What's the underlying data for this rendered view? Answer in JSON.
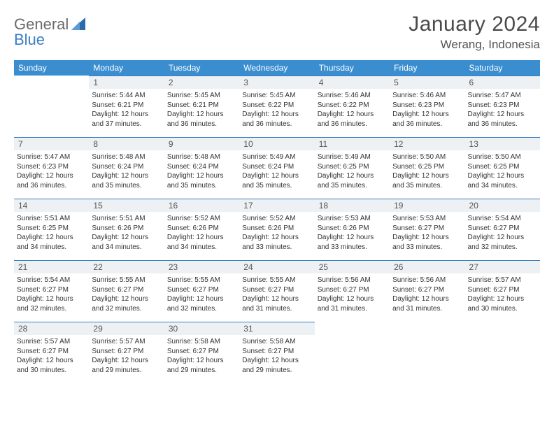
{
  "logo": {
    "text1": "General",
    "text2": "Blue",
    "shape_color": "#2a6bb0"
  },
  "title": "January 2024",
  "location": "Werang, Indonesia",
  "colors": {
    "header_bg": "#3a8ed0",
    "header_text": "#ffffff",
    "day_row_bg": "#eef1f3",
    "day_row_border": "#3a7fc4",
    "body_text": "#333333"
  },
  "weekdays": [
    "Sunday",
    "Monday",
    "Tuesday",
    "Wednesday",
    "Thursday",
    "Friday",
    "Saturday"
  ],
  "weeks": [
    [
      null,
      {
        "n": "1",
        "sr": "5:44 AM",
        "ss": "6:21 PM",
        "dl": "12 hours and 37 minutes."
      },
      {
        "n": "2",
        "sr": "5:45 AM",
        "ss": "6:21 PM",
        "dl": "12 hours and 36 minutes."
      },
      {
        "n": "3",
        "sr": "5:45 AM",
        "ss": "6:22 PM",
        "dl": "12 hours and 36 minutes."
      },
      {
        "n": "4",
        "sr": "5:46 AM",
        "ss": "6:22 PM",
        "dl": "12 hours and 36 minutes."
      },
      {
        "n": "5",
        "sr": "5:46 AM",
        "ss": "6:23 PM",
        "dl": "12 hours and 36 minutes."
      },
      {
        "n": "6",
        "sr": "5:47 AM",
        "ss": "6:23 PM",
        "dl": "12 hours and 36 minutes."
      }
    ],
    [
      {
        "n": "7",
        "sr": "5:47 AM",
        "ss": "6:23 PM",
        "dl": "12 hours and 36 minutes."
      },
      {
        "n": "8",
        "sr": "5:48 AM",
        "ss": "6:24 PM",
        "dl": "12 hours and 35 minutes."
      },
      {
        "n": "9",
        "sr": "5:48 AM",
        "ss": "6:24 PM",
        "dl": "12 hours and 35 minutes."
      },
      {
        "n": "10",
        "sr": "5:49 AM",
        "ss": "6:24 PM",
        "dl": "12 hours and 35 minutes."
      },
      {
        "n": "11",
        "sr": "5:49 AM",
        "ss": "6:25 PM",
        "dl": "12 hours and 35 minutes."
      },
      {
        "n": "12",
        "sr": "5:50 AM",
        "ss": "6:25 PM",
        "dl": "12 hours and 35 minutes."
      },
      {
        "n": "13",
        "sr": "5:50 AM",
        "ss": "6:25 PM",
        "dl": "12 hours and 34 minutes."
      }
    ],
    [
      {
        "n": "14",
        "sr": "5:51 AM",
        "ss": "6:25 PM",
        "dl": "12 hours and 34 minutes."
      },
      {
        "n": "15",
        "sr": "5:51 AM",
        "ss": "6:26 PM",
        "dl": "12 hours and 34 minutes."
      },
      {
        "n": "16",
        "sr": "5:52 AM",
        "ss": "6:26 PM",
        "dl": "12 hours and 34 minutes."
      },
      {
        "n": "17",
        "sr": "5:52 AM",
        "ss": "6:26 PM",
        "dl": "12 hours and 33 minutes."
      },
      {
        "n": "18",
        "sr": "5:53 AM",
        "ss": "6:26 PM",
        "dl": "12 hours and 33 minutes."
      },
      {
        "n": "19",
        "sr": "5:53 AM",
        "ss": "6:27 PM",
        "dl": "12 hours and 33 minutes."
      },
      {
        "n": "20",
        "sr": "5:54 AM",
        "ss": "6:27 PM",
        "dl": "12 hours and 32 minutes."
      }
    ],
    [
      {
        "n": "21",
        "sr": "5:54 AM",
        "ss": "6:27 PM",
        "dl": "12 hours and 32 minutes."
      },
      {
        "n": "22",
        "sr": "5:55 AM",
        "ss": "6:27 PM",
        "dl": "12 hours and 32 minutes."
      },
      {
        "n": "23",
        "sr": "5:55 AM",
        "ss": "6:27 PM",
        "dl": "12 hours and 32 minutes."
      },
      {
        "n": "24",
        "sr": "5:55 AM",
        "ss": "6:27 PM",
        "dl": "12 hours and 31 minutes."
      },
      {
        "n": "25",
        "sr": "5:56 AM",
        "ss": "6:27 PM",
        "dl": "12 hours and 31 minutes."
      },
      {
        "n": "26",
        "sr": "5:56 AM",
        "ss": "6:27 PM",
        "dl": "12 hours and 31 minutes."
      },
      {
        "n": "27",
        "sr": "5:57 AM",
        "ss": "6:27 PM",
        "dl": "12 hours and 30 minutes."
      }
    ],
    [
      {
        "n": "28",
        "sr": "5:57 AM",
        "ss": "6:27 PM",
        "dl": "12 hours and 30 minutes."
      },
      {
        "n": "29",
        "sr": "5:57 AM",
        "ss": "6:27 PM",
        "dl": "12 hours and 29 minutes."
      },
      {
        "n": "30",
        "sr": "5:58 AM",
        "ss": "6:27 PM",
        "dl": "12 hours and 29 minutes."
      },
      {
        "n": "31",
        "sr": "5:58 AM",
        "ss": "6:27 PM",
        "dl": "12 hours and 29 minutes."
      },
      null,
      null,
      null
    ]
  ],
  "labels": {
    "sunrise": "Sunrise:",
    "sunset": "Sunset:",
    "daylight": "Daylight:"
  }
}
